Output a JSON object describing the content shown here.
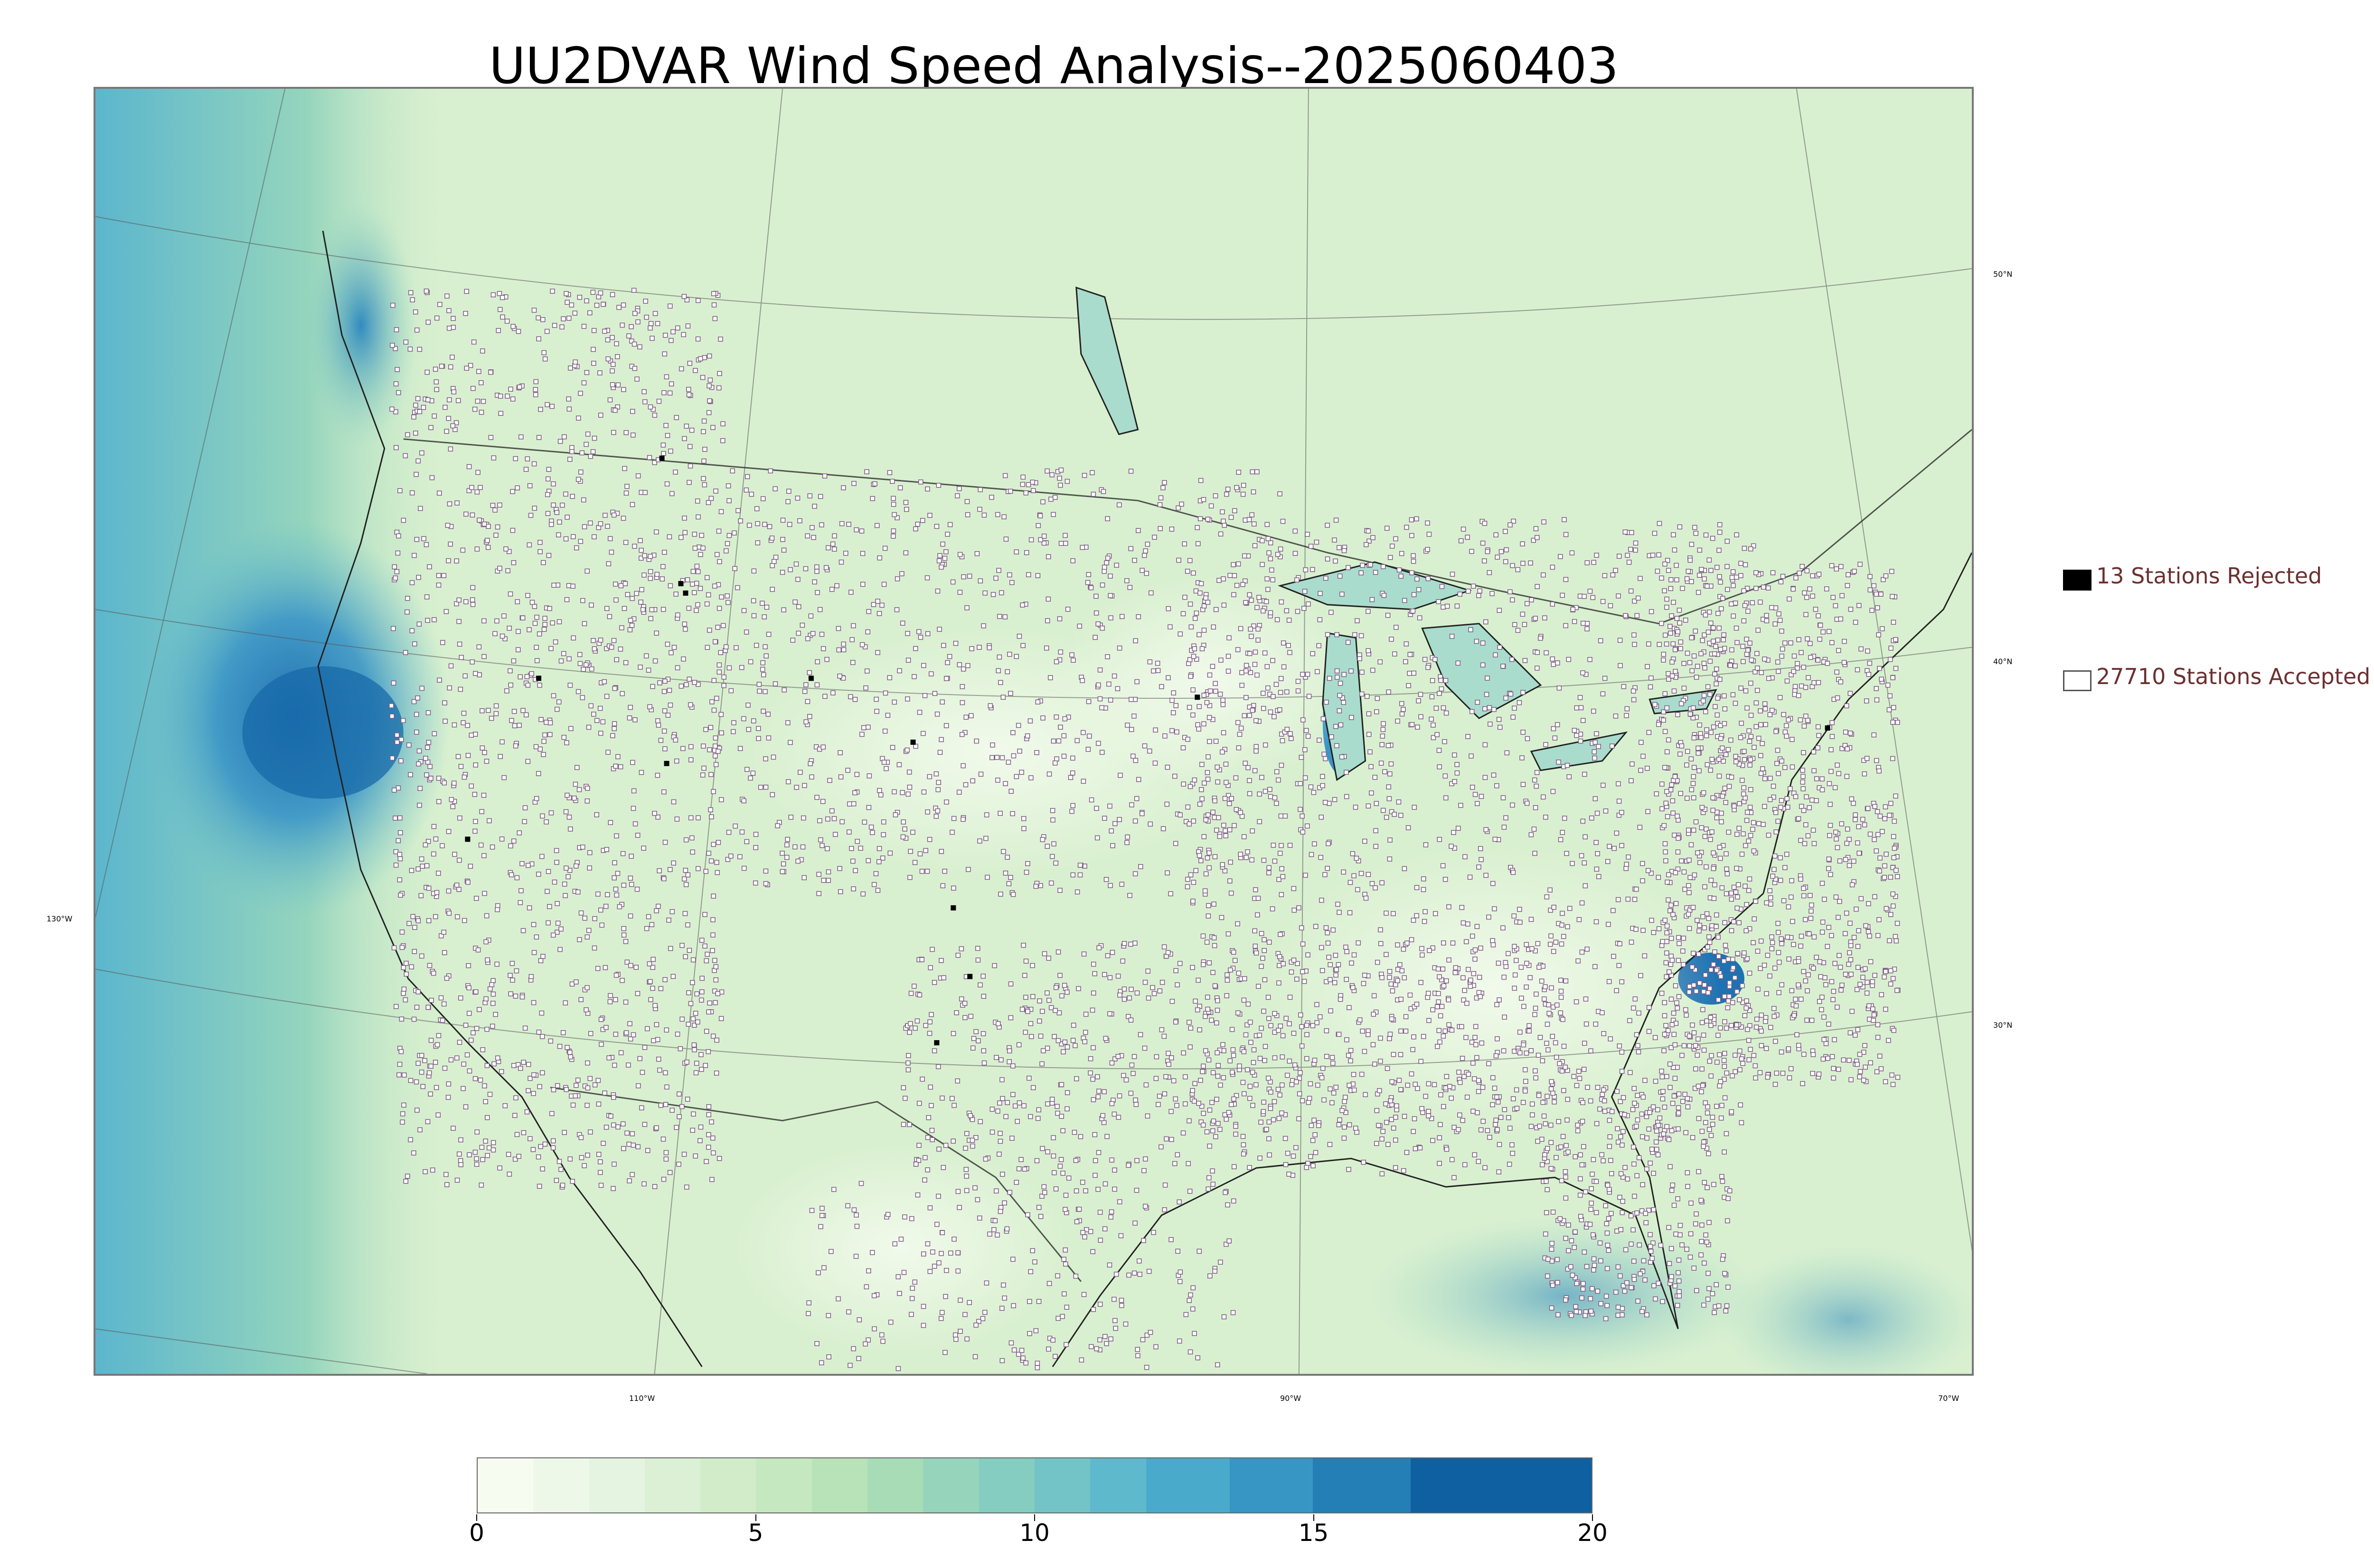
{
  "title": "UU2DVAR Wind Speed Analysis--2025060403",
  "map": {
    "type": "contour-map",
    "field": "wind speed",
    "projection": "lambert-conformal",
    "lat_labels": [
      {
        "text": "50°N",
        "value": 50
      },
      {
        "text": "40°N",
        "value": 40
      },
      {
        "text": "30°N",
        "value": 30
      }
    ],
    "lon_labels_bottom": [
      {
        "text": "110°W",
        "value": -110
      },
      {
        "text": "90°W",
        "value": -90
      },
      {
        "text": "70°W",
        "value": -70
      }
    ],
    "lon_labels_left": [
      {
        "text": "130°W",
        "value": -130
      }
    ],
    "station_marker_color": "#7a5a80"
  },
  "legend": {
    "placement": "right",
    "items": [
      {
        "label": "13 Stations Rejected",
        "swatch_color": "#000000",
        "filled": true
      },
      {
        "label": "27710 Stations Accepted",
        "swatch_color": "#ffffff",
        "filled": false
      }
    ],
    "text_color": "#6b3030"
  },
  "colorbar": {
    "min": 0,
    "max": 20,
    "ticks": [
      "0",
      "5",
      "10",
      "15",
      "20"
    ],
    "tick_values": [
      0,
      5,
      10,
      15,
      20
    ],
    "levels": [
      0,
      1,
      2,
      3,
      4,
      5,
      6,
      7,
      8,
      9,
      10,
      11,
      12,
      13.5,
      15,
      16.75,
      20
    ],
    "colors": [
      "#f7fcf0",
      "#eef8e9",
      "#e4f4e0",
      "#dcf0d6",
      "#d2ecca",
      "#c6e8c0",
      "#b8e2b8",
      "#a8dcb6",
      "#96d5bc",
      "#84cdc0",
      "#72c4c6",
      "#5fb9cc",
      "#49aacb",
      "#3796c4",
      "#237fb5",
      "#0f60a0"
    ]
  }
}
